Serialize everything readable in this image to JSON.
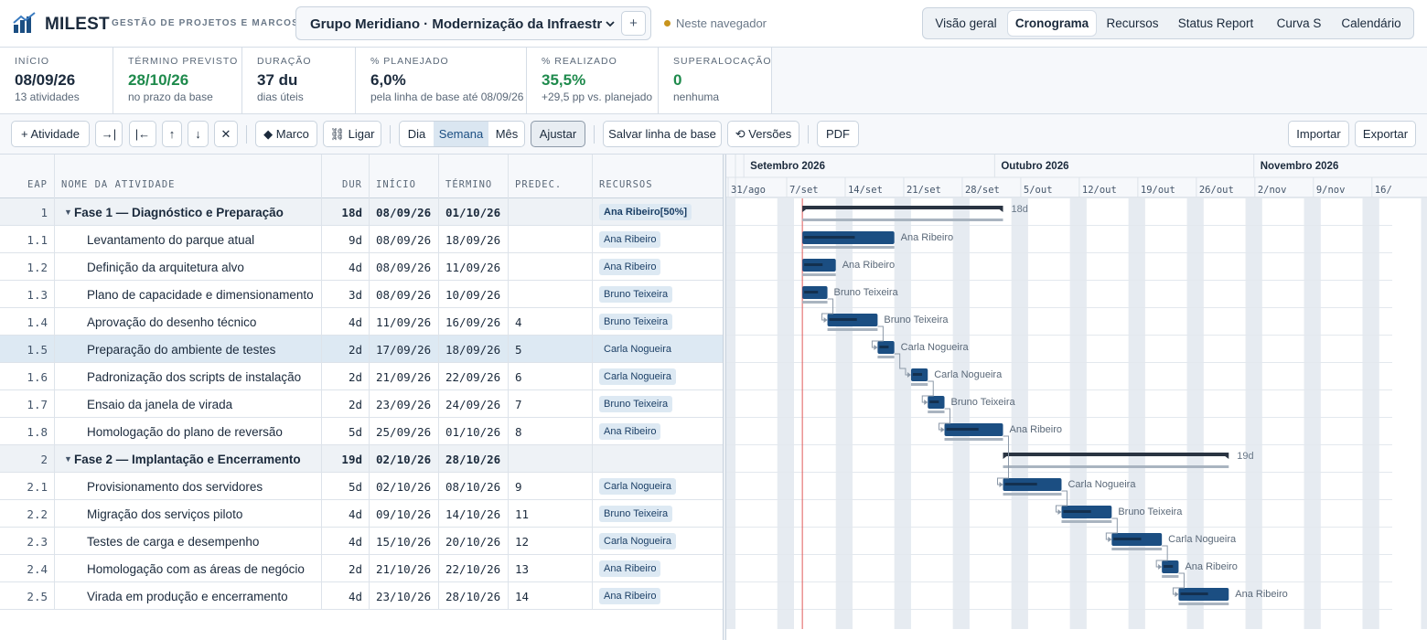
{
  "app": {
    "name": "MILEST",
    "subtitle": "GESTÃO DE PROJETOS E MARCOS"
  },
  "project": {
    "title": "Grupo Meridiano · Modernização da Infraestrutura - ",
    "add_label": "+",
    "storage": "Neste navegador"
  },
  "nav": [
    {
      "label": "Visão geral",
      "active": false
    },
    {
      "label": "Cronograma",
      "active": true
    },
    {
      "label": "Recursos",
      "active": false
    },
    {
      "label": "Status Report",
      "active": false
    },
    {
      "label": "Curva S",
      "active": false
    },
    {
      "label": "Calendário",
      "active": false
    }
  ],
  "kpis": [
    {
      "label": "INÍCIO",
      "value": "08/09/26",
      "sub": "13 atividades",
      "accent": false
    },
    {
      "label": "TÉRMINO PREVISTO",
      "value": "28/10/26",
      "sub": "no prazo da base",
      "accent": true
    },
    {
      "label": "DURAÇÃO",
      "value": "37 du",
      "sub": "dias úteis",
      "accent": false
    },
    {
      "label": "% PLANEJADO",
      "value": "6,0%",
      "sub": "pela linha de base até 08/09/26",
      "accent": false
    },
    {
      "label": "% REALIZADO",
      "value": "35,5%",
      "sub": "+29,5 pp vs. planejado",
      "accent": true
    },
    {
      "label": "SUPERALOCAÇÃO",
      "value": "0",
      "sub": "nenhuma",
      "accent": true
    }
  ],
  "toolbar": {
    "add_activity": "+ Atividade",
    "indent": "→|",
    "outdent": "|←",
    "move_up": "↑",
    "move_down": "↓",
    "delete": "✕",
    "milestone": "◆ Marco",
    "link": "⛓ Ligar",
    "zoom": [
      {
        "label": "Dia",
        "active": false
      },
      {
        "label": "Semana",
        "active": true
      },
      {
        "label": "Mês",
        "active": false
      }
    ],
    "fit": "Ajustar",
    "save_baseline": "Salvar linha de base",
    "versions": "⟲ Versões",
    "pdf": "PDF",
    "import": "Importar",
    "export": "Exportar"
  },
  "columns": {
    "eap": "EAP",
    "name": "NOME DA ATIVIDADE",
    "dur": "DUR",
    "start": "INÍCIO",
    "end": "TÉRMINO",
    "pred": "PREDEC.",
    "res": "RECURSOS"
  },
  "tasks": [
    {
      "eap": "1",
      "name": "Fase 1 — Diagnóstico e Preparação",
      "dur": "18d",
      "start": "08/09/26",
      "end": "01/10/26",
      "pred": "",
      "res": "Ana Ribeiro[50%]",
      "phase": true
    },
    {
      "eap": "1.1",
      "name": "Levantamento do parque atual",
      "dur": "9d",
      "start": "08/09/26",
      "end": "18/09/26",
      "pred": "",
      "res": "Ana Ribeiro"
    },
    {
      "eap": "1.2",
      "name": "Definição da arquitetura alvo",
      "dur": "4d",
      "start": "08/09/26",
      "end": "11/09/26",
      "pred": "",
      "res": "Ana Ribeiro"
    },
    {
      "eap": "1.3",
      "name": "Plano de capacidade e dimensionamento",
      "dur": "3d",
      "start": "08/09/26",
      "end": "10/09/26",
      "pred": "",
      "res": "Bruno Teixeira"
    },
    {
      "eap": "1.4",
      "name": "Aprovação do desenho técnico",
      "dur": "4d",
      "start": "11/09/26",
      "end": "16/09/26",
      "pred": "4",
      "res": "Bruno Teixeira"
    },
    {
      "eap": "1.5",
      "name": "Preparação do ambiente de testes",
      "dur": "2d",
      "start": "17/09/26",
      "end": "18/09/26",
      "pred": "5",
      "res": "Carla Nogueira",
      "selected": true
    },
    {
      "eap": "1.6",
      "name": "Padronização dos scripts de instalação",
      "dur": "2d",
      "start": "21/09/26",
      "end": "22/09/26",
      "pred": "6",
      "res": "Carla Nogueira"
    },
    {
      "eap": "1.7",
      "name": "Ensaio da janela de virada",
      "dur": "2d",
      "start": "23/09/26",
      "end": "24/09/26",
      "pred": "7",
      "res": "Bruno Teixeira"
    },
    {
      "eap": "1.8",
      "name": "Homologação do plano de reversão",
      "dur": "5d",
      "start": "25/09/26",
      "end": "01/10/26",
      "pred": "8",
      "res": "Ana Ribeiro"
    },
    {
      "eap": "2",
      "name": "Fase 2 — Implantação e Encerramento",
      "dur": "19d",
      "start": "02/10/26",
      "end": "28/10/26",
      "pred": "",
      "res": "",
      "phase": true
    },
    {
      "eap": "2.1",
      "name": "Provisionamento dos servidores",
      "dur": "5d",
      "start": "02/10/26",
      "end": "08/10/26",
      "pred": "9",
      "res": "Carla Nogueira"
    },
    {
      "eap": "2.2",
      "name": "Migração dos serviços piloto",
      "dur": "4d",
      "start": "09/10/26",
      "end": "14/10/26",
      "pred": "11",
      "res": "Bruno Teixeira"
    },
    {
      "eap": "2.3",
      "name": "Testes de carga e desempenho",
      "dur": "4d",
      "start": "15/10/26",
      "end": "20/10/26",
      "pred": "12",
      "res": "Carla Nogueira"
    },
    {
      "eap": "2.4",
      "name": "Homologação com as áreas de negócio",
      "dur": "2d",
      "start": "21/10/26",
      "end": "22/10/26",
      "pred": "13",
      "res": "Ana Ribeiro"
    },
    {
      "eap": "2.5",
      "name": "Virada em produção e encerramento",
      "dur": "4d",
      "start": "23/10/26",
      "end": "28/10/26",
      "pred": "14",
      "res": "Ana Ribeiro"
    }
  ],
  "gantt": {
    "months": [
      "Setembro 2026",
      "Outubro 2026",
      "Novembro 2026"
    ],
    "weeks": [
      "31/ago",
      "7/set",
      "14/set",
      "21/set",
      "28/set",
      "5/out",
      "12/out",
      "19/out",
      "26/out",
      "2/nov",
      "9/nov",
      "16/"
    ],
    "phase_labels": [
      "18d",
      "19d"
    ],
    "today_date": "08/09/26",
    "colors": {
      "bar": "#1b4e82",
      "phase": "#2a3442",
      "baseline": "#a9b4c0",
      "today": "#e05a5a",
      "weekend": "#e6ebf1"
    }
  }
}
